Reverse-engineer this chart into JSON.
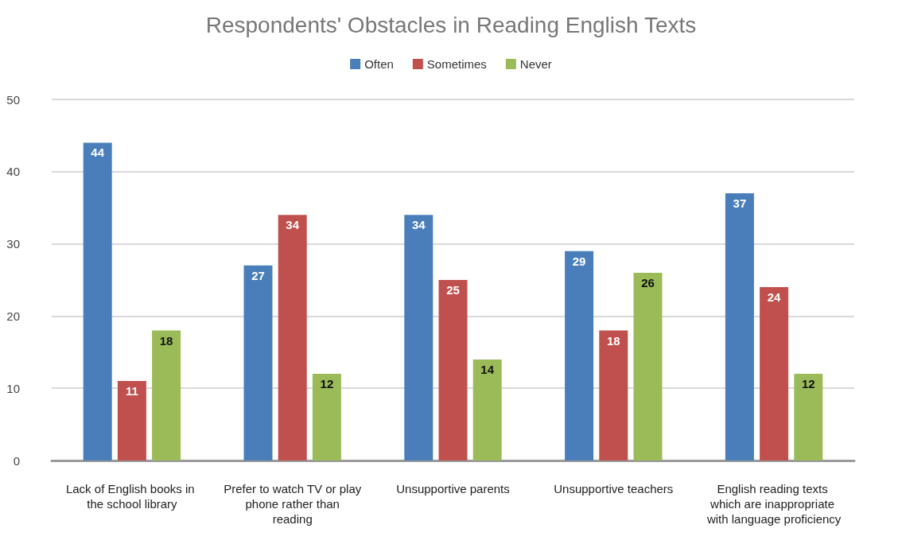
{
  "chart_data": {
    "type": "bar",
    "title": "Respondents' Obstacles in Reading English Texts",
    "categories": [
      "Lack of English books in the school library",
      "Prefer to watch TV or play phone rather than reading",
      "Unsupportive parents",
      "Unsupportive teachers",
      "English reading texts which are inappropriate with language proficiency"
    ],
    "series": [
      {
        "name": "Often",
        "color": "#4a7ebb",
        "values": [
          44,
          27,
          34,
          29,
          37
        ]
      },
      {
        "name": "Sometimes",
        "color": "#c0504d",
        "values": [
          11,
          34,
          25,
          18,
          24
        ]
      },
      {
        "name": "Never",
        "color": "#9bbb59",
        "values": [
          18,
          12,
          14,
          26,
          12
        ]
      }
    ],
    "ylim": [
      0,
      50
    ],
    "yticks": [
      0,
      10,
      20,
      30,
      40,
      50
    ],
    "grid": "y",
    "legend": "top",
    "data_labels": true
  }
}
